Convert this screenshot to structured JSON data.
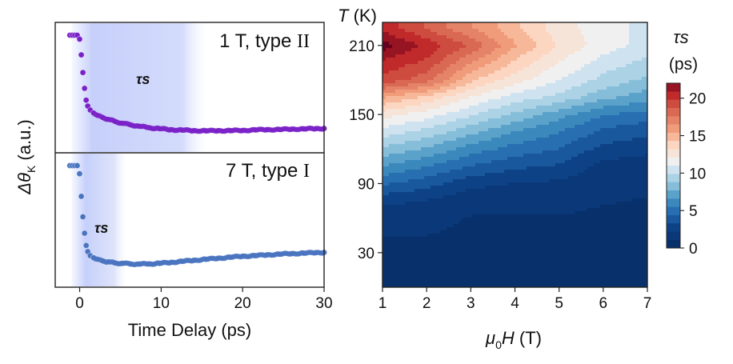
{
  "chart_data": [
    {
      "type": "scatter",
      "panel": "left-top",
      "label_parts": [
        "1 T, type",
        "II"
      ],
      "tau_label": "τs",
      "xlabel": "Time Delay (ps)",
      "ylabel_parts": [
        "Δθ",
        "K",
        " (a.u.)"
      ],
      "xlim": [
        -3,
        30
      ],
      "xticks": [
        "0",
        "10",
        "20",
        "30"
      ],
      "highlight_span": [
        -1,
        16
      ],
      "color": "#7a22c8",
      "points_x": [
        -1.2,
        -0.9,
        -0.6,
        -0.3,
        0.0,
        0.2,
        0.4,
        0.6,
        0.8,
        1.0,
        1.3,
        1.7,
        2.2,
        2.8,
        3.5,
        4.3,
        5.2,
        6.2,
        7.3,
        8.5,
        9.8,
        11.2,
        12.6,
        14.0,
        15.5,
        17.0,
        18.5,
        20.0,
        21.5,
        23.0,
        24.5,
        26.0,
        27.5,
        29.0,
        30.0
      ],
      "points_y": [
        1.0,
        1.0,
        1.0,
        1.0,
        0.96,
        0.8,
        0.62,
        0.46,
        0.34,
        0.28,
        0.24,
        0.21,
        0.185,
        0.165,
        0.145,
        0.125,
        0.105,
        0.09,
        0.075,
        0.06,
        0.05,
        0.04,
        0.035,
        0.03,
        0.028,
        0.03,
        0.03,
        0.032,
        0.038,
        0.04,
        0.042,
        0.045,
        0.048,
        0.05,
        0.052
      ]
    },
    {
      "type": "scatter",
      "panel": "left-bottom",
      "label_parts": [
        "7 T, type",
        "I"
      ],
      "tau_label": "τs",
      "xlim": [
        -3,
        30
      ],
      "highlight_span": [
        -1,
        6
      ],
      "color": "#4a74c0",
      "points_x": [
        -1.2,
        -0.9,
        -0.6,
        -0.3,
        0.0,
        0.2,
        0.4,
        0.6,
        0.8,
        1.0,
        1.3,
        1.7,
        2.2,
        2.8,
        3.5,
        4.3,
        5.2,
        6.2,
        7.3,
        8.5,
        9.8,
        11.2,
        12.6,
        14.0,
        15.5,
        17.0,
        18.5,
        20.0,
        21.5,
        23.0,
        24.5,
        26.0,
        27.5,
        29.0,
        30.0
      ],
      "points_y": [
        1.0,
        1.0,
        1.0,
        1.0,
        0.92,
        0.7,
        0.5,
        0.34,
        0.22,
        0.16,
        0.12,
        0.1,
        0.085,
        0.07,
        0.06,
        0.05,
        0.045,
        0.04,
        0.038,
        0.04,
        0.045,
        0.055,
        0.065,
        0.075,
        0.085,
        0.095,
        0.105,
        0.115,
        0.12,
        0.128,
        0.135,
        0.14,
        0.145,
        0.15,
        0.152
      ]
    },
    {
      "type": "heatmap",
      "panel": "right",
      "xlabel_parts": [
        "μ",
        "0",
        "H",
        " (T)"
      ],
      "ylabel_parts": [
        "T",
        " (K)"
      ],
      "xlim": [
        1,
        7
      ],
      "ylim": [
        0,
        230
      ],
      "xticks": [
        "1",
        "2",
        "3",
        "4",
        "5",
        "6",
        "7"
      ],
      "yticks": [
        "30",
        "90",
        "150",
        "210"
      ],
      "colorbar_title": "τs",
      "colorbar_unit": "(ps)",
      "colorbar_ticks": [
        "0",
        "5",
        "10",
        "15",
        "20"
      ],
      "clim": [
        0,
        22
      ],
      "field_x": [
        1,
        2,
        3,
        4,
        5,
        6,
        7
      ],
      "temperature_y": [
        0,
        30,
        60,
        75,
        90,
        105,
        120,
        135,
        150,
        165,
        180,
        195,
        210,
        225
      ],
      "tau_values": [
        [
          0.0,
          0.0,
          0.0,
          0.0,
          0.0,
          0.0,
          0.0
        ],
        [
          0.3,
          0.3,
          0.3,
          0.3,
          0.3,
          0.3,
          0.3
        ],
        [
          0.8,
          0.8,
          0.5,
          0.5,
          0.5,
          0.4,
          0.4
        ],
        [
          2.0,
          1.6,
          0.9,
          0.8,
          0.8,
          0.6,
          0.5
        ],
        [
          4.0,
          3.2,
          2.0,
          1.6,
          1.4,
          0.9,
          0.8
        ],
        [
          6.0,
          5.0,
          3.8,
          3.0,
          2.6,
          1.2,
          1.0
        ],
        [
          8.0,
          7.0,
          5.5,
          4.5,
          3.8,
          2.4,
          2.0
        ],
        [
          10.0,
          9.0,
          7.5,
          6.0,
          5.0,
          3.6,
          3.0
        ],
        [
          12.0,
          11.0,
          9.5,
          8.0,
          6.5,
          5.0,
          4.5
        ],
        [
          15.0,
          13.5,
          11.5,
          10.0,
          9.0,
          7.5,
          6.5
        ],
        [
          19.0,
          17.5,
          14.0,
          12.0,
          10.5,
          9.0,
          8.0
        ],
        [
          20.0,
          19.0,
          16.0,
          13.5,
          11.5,
          10.0,
          9.0
        ],
        [
          22.0,
          20.0,
          18.0,
          15.0,
          12.5,
          11.0,
          10.0
        ],
        [
          20.0,
          18.0,
          16.0,
          14.0,
          12.0,
          11.0,
          10.0
        ]
      ]
    }
  ]
}
